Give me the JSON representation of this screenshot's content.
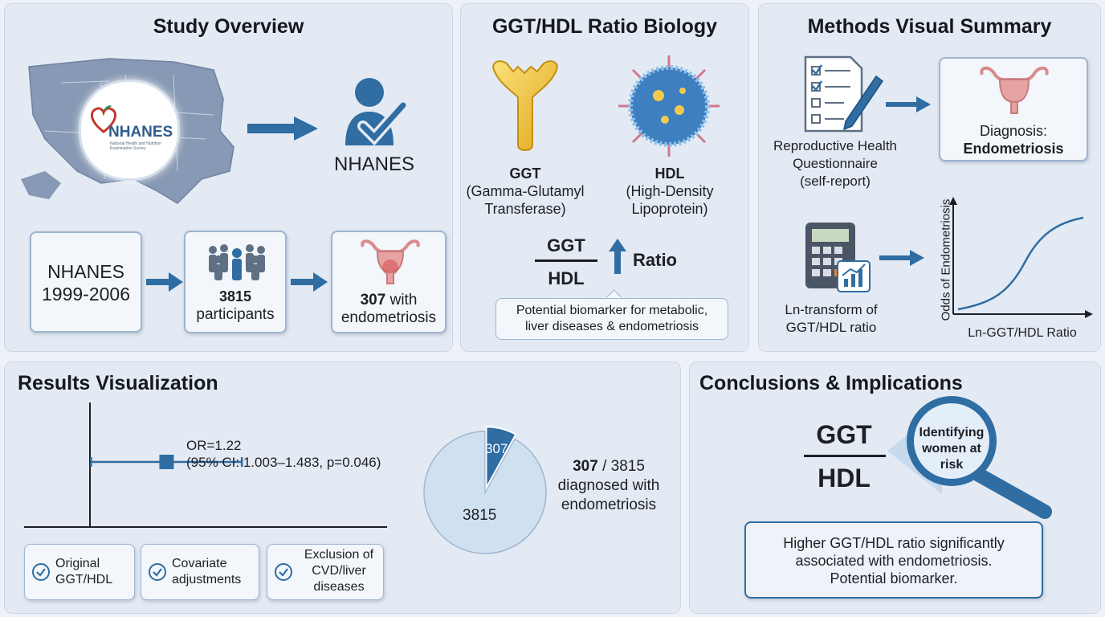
{
  "study_overview": {
    "title": "Study Overview",
    "logo_text": "NHANES",
    "logo_subtext": "National Health and Nutrition Examination Survey",
    "icon_label": "NHANES",
    "flow": {
      "source": "NHANES\n1999-2006",
      "participants_count": "3815",
      "participants_label": "participants",
      "cases_count": "307",
      "cases_label": "with\nendometriosis"
    }
  },
  "biology": {
    "title": "GGT/HDL Ratio Biology",
    "ggt_abbr": "GGT",
    "ggt_full": "(Gamma-Glutamyl\nTransferase)",
    "hdl_abbr": "HDL",
    "hdl_full": "(High-Density\nLipoprotein)",
    "numerator": "GGT",
    "denominator": "HDL",
    "ratio_label": "Ratio",
    "callout": "Potential biomarker for metabolic,\nliver diseases & endometriosis"
  },
  "methods": {
    "title": "Methods Visual Summary",
    "questionnaire_label": "Reproductive Health\nQuestionnaire\n(self-report)",
    "diagnosis_label": "Diagnosis:",
    "diagnosis_value": "Endometriosis",
    "transform_label": "Ln-transform of\nGGT/HDL ratio",
    "curve_ylabel": "Odds of Endometriosis",
    "curve_xlabel": "Ln-GGT/HDL Ratio"
  },
  "results": {
    "title": "Results Visualization",
    "or_text": "OR=1.22",
    "ci_text": "(95% CI: 1.003–1.483, p=0.046)",
    "pie_small_label": "307",
    "pie_large_label": "3815",
    "summary_count": "307",
    "summary_rest": " / 3815",
    "summary_label": "diagnosed with\nendometriosis",
    "checks": [
      "Original\nGGT/HDL",
      "Covariate\nadjustments",
      "Exclusion of\nCVD/liver\ndiseases"
    ]
  },
  "conclusions": {
    "title": "Conclusions & Implications",
    "numerator": "GGT",
    "denominator": "HDL",
    "lens_text": "Identifying\nwomen at\nrisk",
    "summary": "Higher GGT/HDL ratio significantly\nassociated with endometriosis.\nPotential biomarker."
  },
  "chart_data": {
    "type": "scatter",
    "subtype": "forest-plot",
    "series": [
      {
        "name": "",
        "values": [
          {
            "estimate": 1.22,
            "ci_low": 1.003,
            "ci_high": 1.483,
            "p": 0.046
          }
        ]
      }
    ],
    "pie": {
      "values": [
        307,
        3508
      ],
      "labels": [
        "307",
        "3815"
      ],
      "total": 3815
    },
    "colors": {
      "primary": "#2f6da3",
      "light": "#cfe0f1"
    }
  }
}
